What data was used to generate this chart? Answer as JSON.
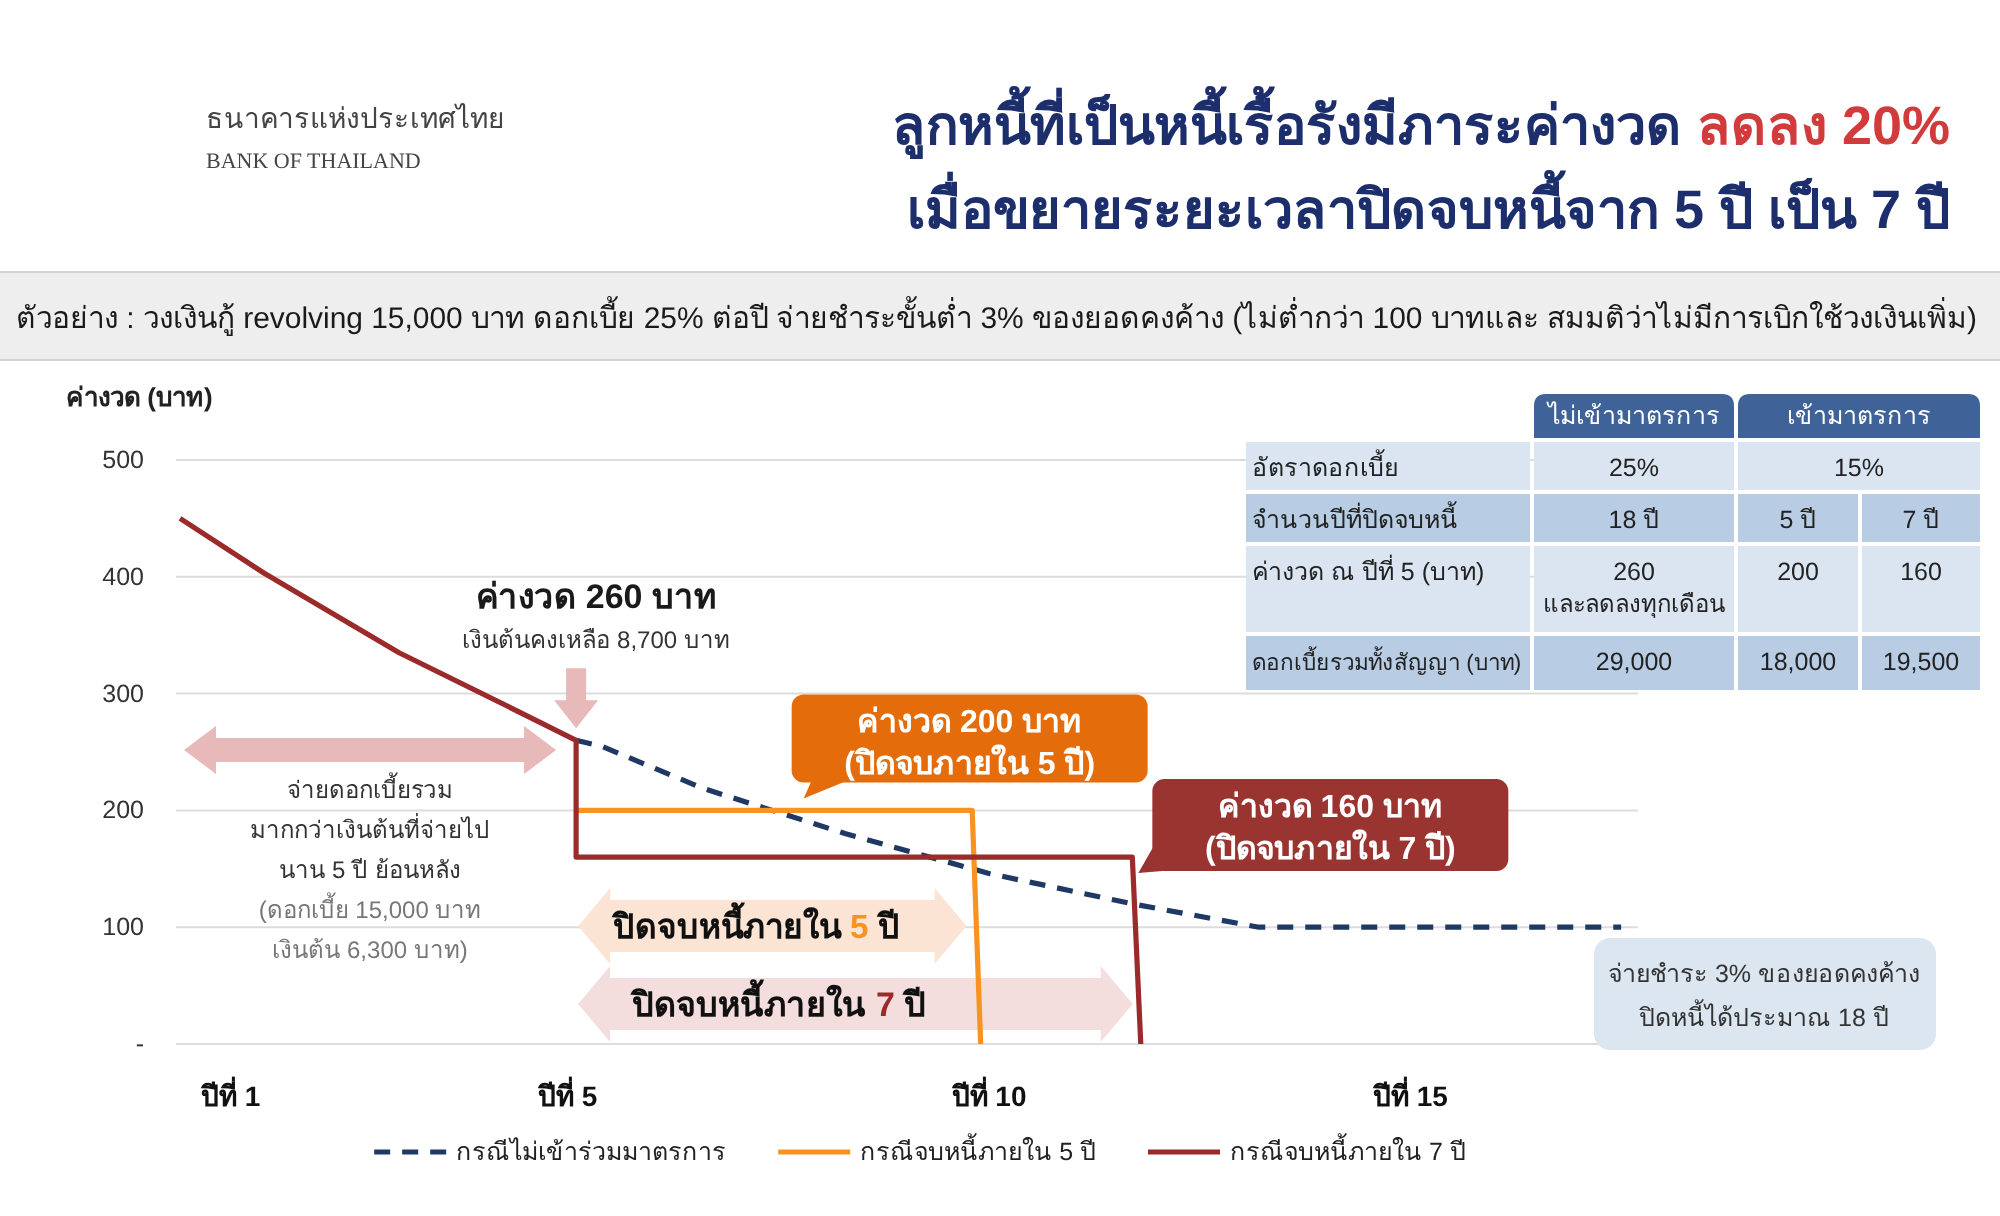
{
  "chart_data": [
    {
      "type": "line",
      "title": "ลูกหนี้ที่เป็นหนี้เรื้อรังมีภาระค่างวด ลดลง 20%\nเมื่อขยายระยะเวลาปิดจบหนี้จาก 5 ปี เป็น 7 ปี",
      "subtitle": "ตัวอย่าง : วงเงินกู้ revolving 15,000 บาท ดอกเบี้ย 25% ต่อปี จ่ายชำระขั้นต่ำ 3% ของยอดคงค้าง (ไม่ต่ำกว่า 100 บาทและ สมมติว่าไม่มีการเบิกใช้วงเงินเพิ่ม)",
      "ylabel": "ค่างวด (บาท)",
      "xlim": [
        0.4,
        17.7
      ],
      "xticks": [
        {
          "value": 1,
          "label": "ปีที่ 1"
        },
        {
          "value": 5,
          "label": "ปีที่ 5"
        },
        {
          "value": 10,
          "label": "ปีที่ 10"
        },
        {
          "value": 15,
          "label": "ปีที่ 15"
        }
      ],
      "ylim": [
        0,
        500
      ],
      "yticks": [
        {
          "value": 0,
          "label": "-"
        },
        100,
        200,
        300,
        400,
        500
      ],
      "grid": "y",
      "legend": "bottom",
      "series": [
        {
          "name": "กรณีไม่เข้าร่วมมาตรการ",
          "color": "#1f3864",
          "line_style": "dashed",
          "x": [
            5.1,
            5.4,
            6.6,
            8.3,
            10.0,
            11.7,
            13.2,
            17.5
          ],
          "values": [
            260,
            255,
            219,
            180,
            146,
            120,
            100,
            100
          ]
        },
        {
          "name": "กรณีจบหนี้ภายใน 5 ปี",
          "color": "#f7931e",
          "line_style": "solid",
          "x": [
            5.1,
            9.8,
            9.9
          ],
          "values": [
            200,
            200,
            0
          ]
        },
        {
          "name": "กรณีจบหนี้ภายใน 7 ปี",
          "color": "#9b2a2a",
          "line_style": "solid",
          "x": [
            0.4,
            1.4,
            3.0,
            4.6,
            5.1,
            5.1,
            11.7,
            11.8
          ],
          "values": [
            450,
            403,
            335,
            278,
            260,
            160,
            160,
            0
          ]
        }
      ],
      "annotations": [
        "ธนาคารแห่งประเทศไทย",
        "BANK OF THAILAND",
        {
          "text": "ค่างวด 260 บาท\nเงินต้นคงเหลือ 8,700 บาท",
          "x": 5.1,
          "y": 260
        },
        "จ่ายดอกเบี้ยรวม\nมากกว่าเงินต้นที่จ่ายไป\nนาน 5 ปี ย้อนหลัง\n(ดอกเบี้ย 15,000 บาท\nเงินต้น 6,300 บาท)",
        {
          "text": "ค่างวด 200 บาท\n(ปิดจบภายใน 5 ปี)",
          "x": 7.8,
          "y": 200
        },
        {
          "text": "ค่างวด 160 บาท\n(ปิดจบภายใน 7 ปี)",
          "x": 11.7,
          "y": 160
        },
        "ปิดจบหนี้ภายใน 5 ปี",
        "ปิดจบหนี้ภายใน 7 ปี",
        "จ่ายชำระ 3% ของยอดคงค้าง\nปิดหนี้ได้ประมาณ 18 ปี"
      ]
    },
    {
      "type": "other",
      "annotations": [
        "ไม่เข้ามาตรการ",
        "เข้ามาตรการ",
        "อัตราดอกเบี้ย",
        "25%",
        "15%",
        "จำนวนปีที่ปิดจบหนี้",
        "18 ปี",
        "5 ปี",
        "7 ปี",
        "ค่างวด ณ ปีที่ 5 (บาท)",
        "260\nและลดลงทุกเดือน",
        "200",
        "160",
        "ดอกเบี้ยรวมทั้งสัญญา (บาท)",
        "29,000",
        "18,000",
        "19,500"
      ]
    }
  ]
}
